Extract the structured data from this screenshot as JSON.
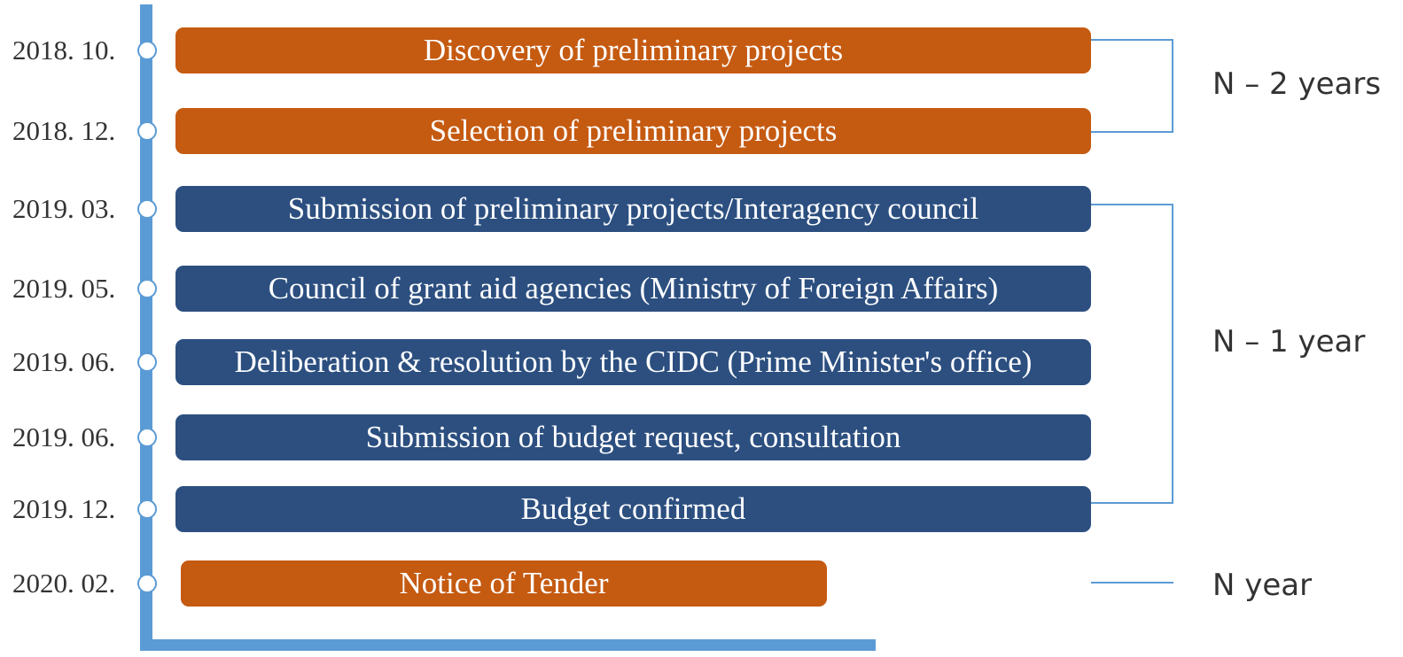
{
  "steps": [
    {
      "date": "2018. 10.",
      "label": "Discovery of preliminary projects",
      "color": "#c55a11"
    },
    {
      "date": "2018. 12.",
      "label": "Selection of preliminary projects",
      "color": "#c55a11"
    },
    {
      "date": "2019. 03.",
      "label": "Submission of preliminary projects/Interagency council",
      "color": "#2c4f80"
    },
    {
      "date": "2019. 05.",
      "label": "Council of grant aid agencies (Ministry of Foreign Affairs)",
      "color": "#2c4f80"
    },
    {
      "date": "2019. 06.",
      "label": "Deliberation & resolution by the CIDC (Prime Minister's office)",
      "color": "#2c4f80"
    },
    {
      "date": "2019. 06.",
      "label": "Submission of budget request, consultation",
      "color": "#2c4f80"
    },
    {
      "date": "2019. 12.",
      "label": "Budget confirmed",
      "color": "#2c4f80"
    },
    {
      "date": "2020. 02.",
      "label": "Notice of Tender",
      "color": "#c55a11"
    }
  ],
  "groups": [
    {
      "label": "N – 2 years"
    },
    {
      "label": "N – 1 year"
    },
    {
      "label": "N year"
    }
  ]
}
